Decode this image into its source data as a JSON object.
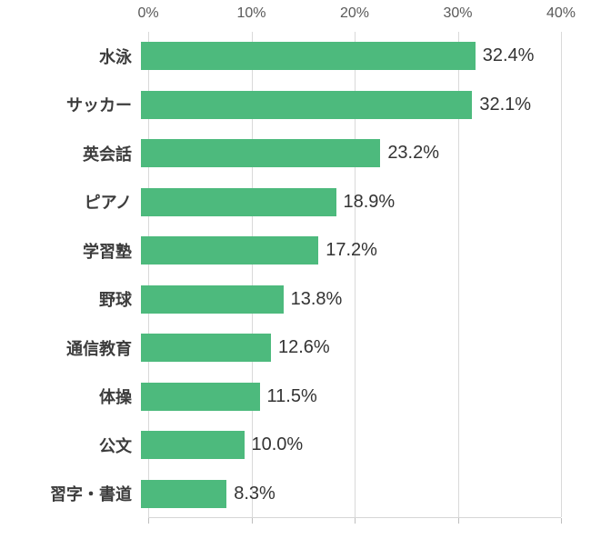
{
  "chart_data": {
    "type": "bar",
    "orientation": "horizontal",
    "title": "",
    "xlabel": "",
    "ylabel": "",
    "categories": [
      "水泳",
      "サッカー",
      "英会話",
      "ピアノ",
      "学習塾",
      "野球",
      "通信教育",
      "体操",
      "公文",
      "習字・書道"
    ],
    "values": [
      32.4,
      32.1,
      23.2,
      18.9,
      17.2,
      13.8,
      12.6,
      11.5,
      10.0,
      8.3
    ],
    "value_labels": [
      "32.4%",
      "32.1%",
      "23.2%",
      "18.9%",
      "17.2%",
      "13.8%",
      "12.6%",
      "11.5%",
      "10.0%",
      "8.3%"
    ],
    "x_ticks": [
      "0%",
      "10%",
      "20%",
      "30%",
      "40%"
    ],
    "x_tick_values": [
      0,
      10,
      20,
      30,
      40
    ],
    "xlim": [
      0,
      40
    ],
    "grid": true,
    "legend": false,
    "bar_color": "#4dba7d",
    "gridline_color": "#d9d9d9",
    "tick_label_color": "#595959",
    "category_label_color": "#3c3c3c",
    "value_label_color": "#333333"
  }
}
